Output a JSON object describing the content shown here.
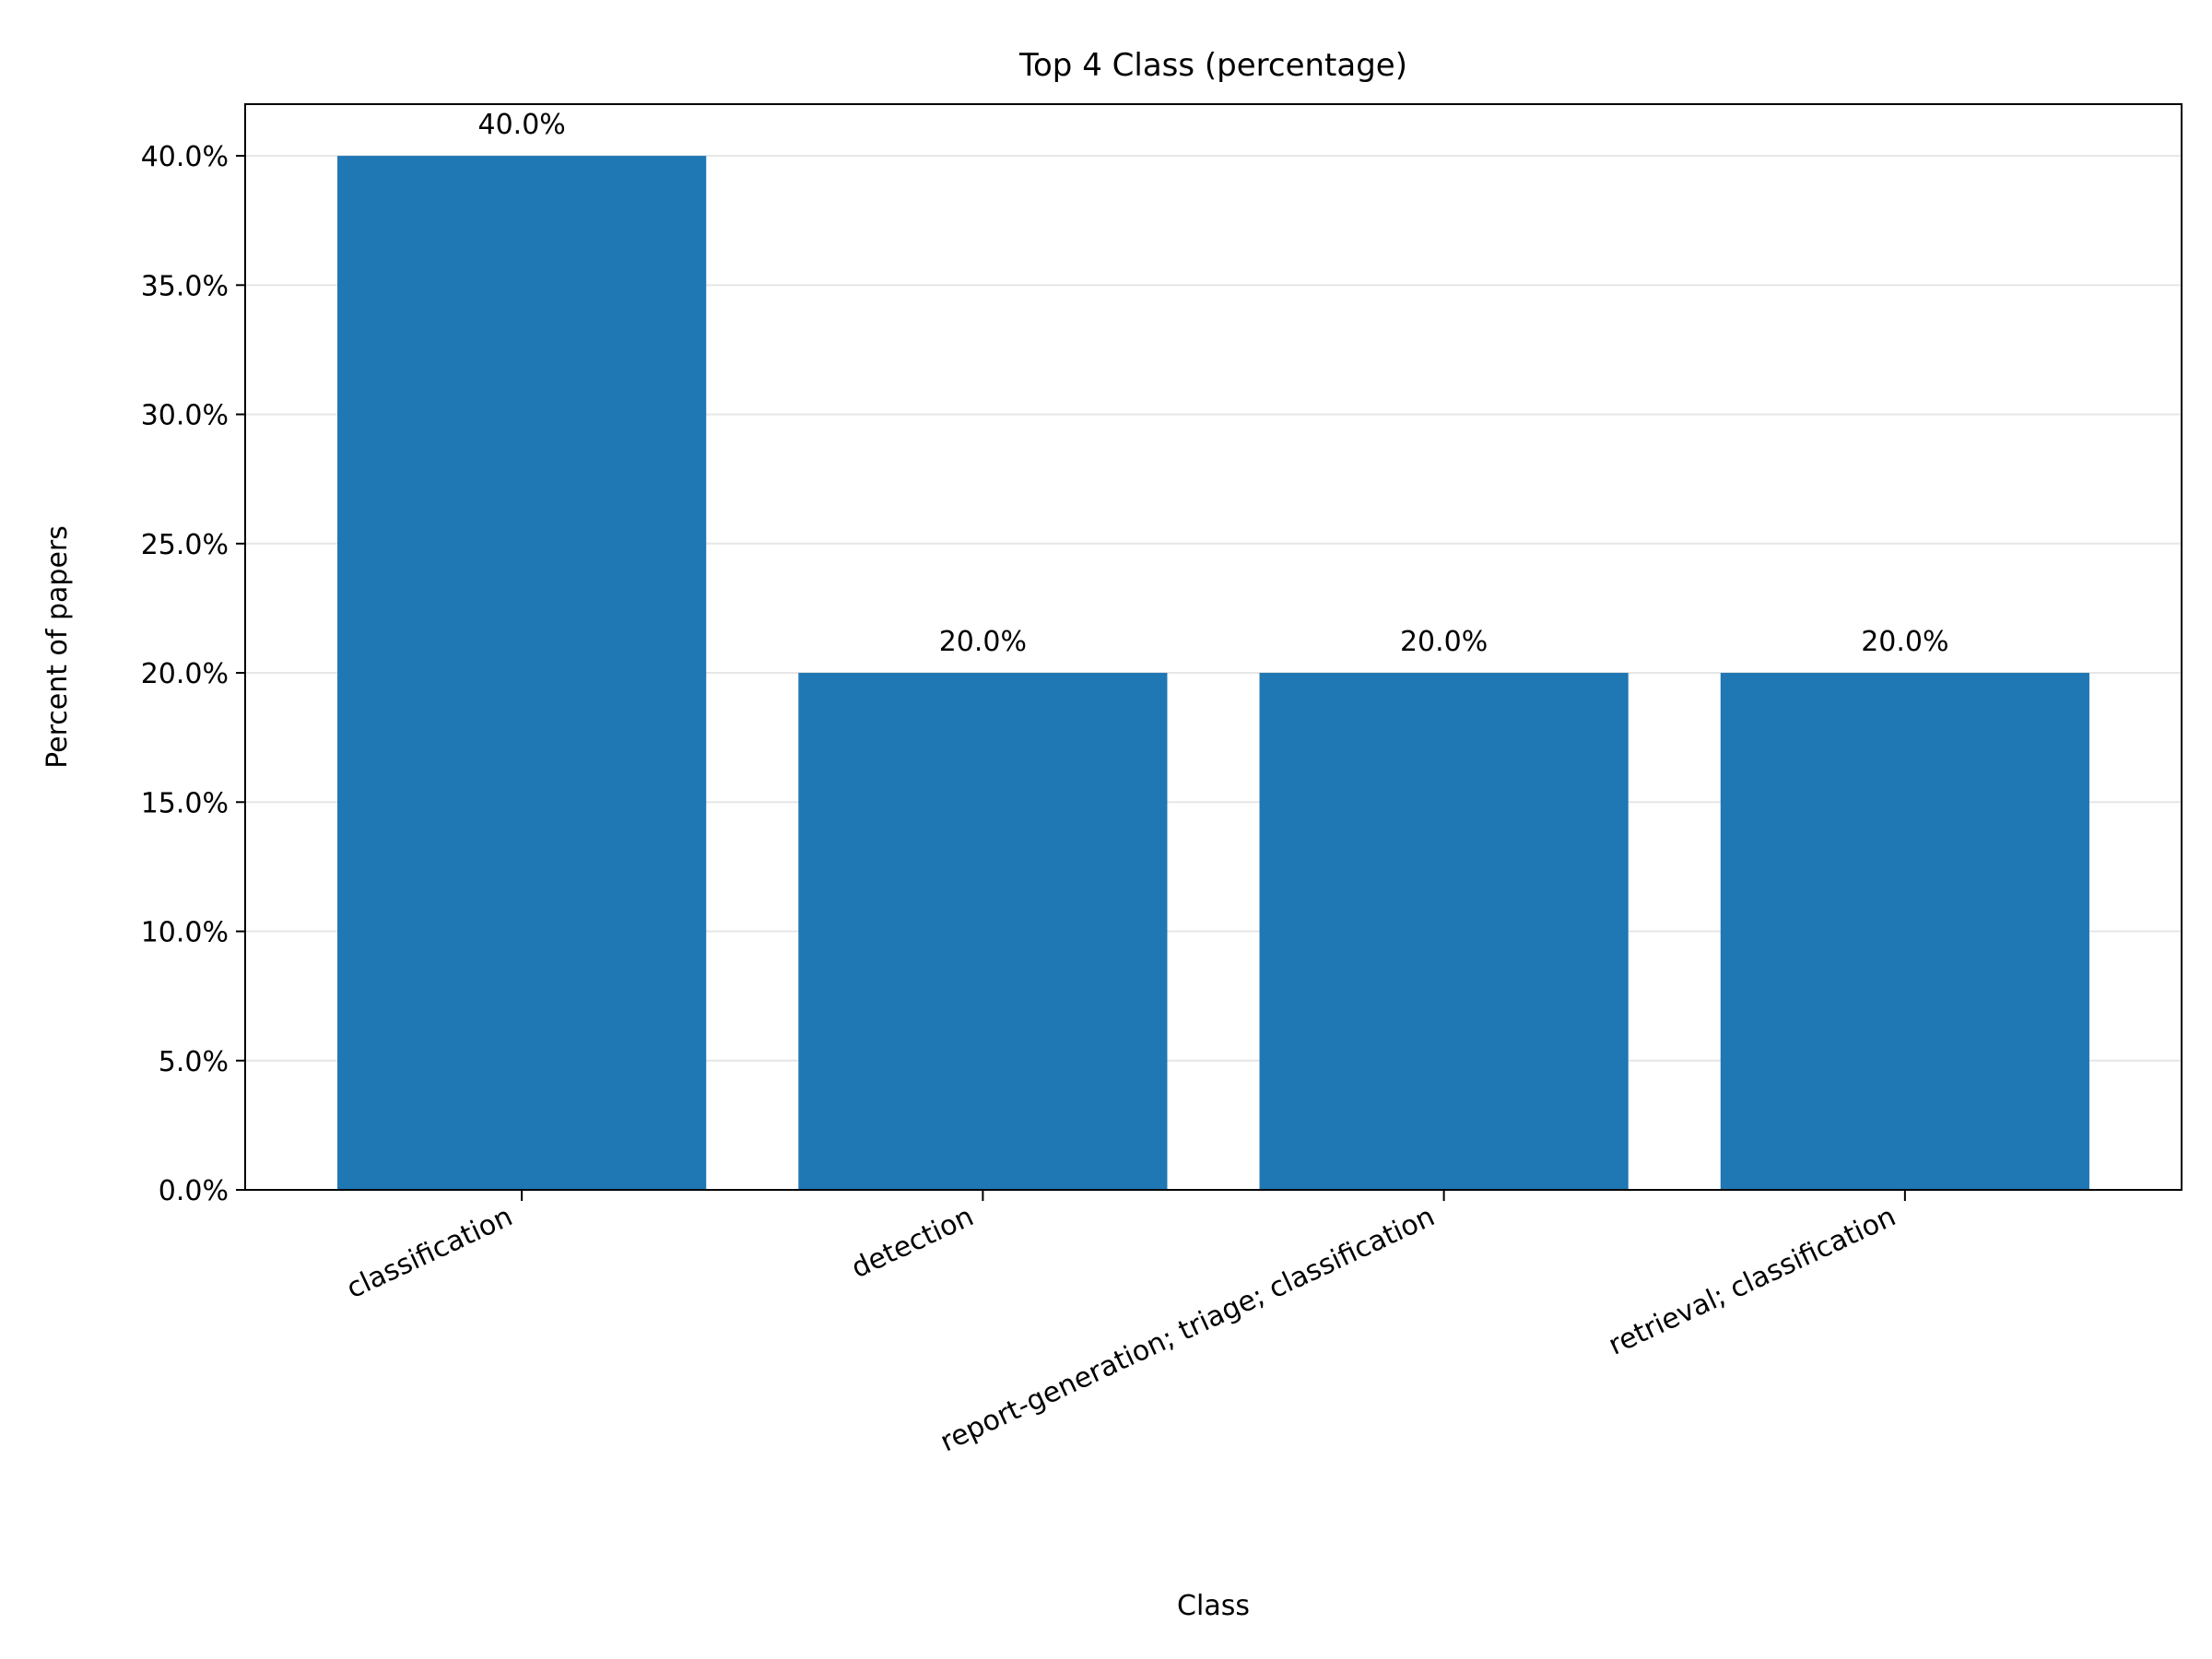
{
  "chart_data": {
    "type": "bar",
    "title": "Top 4 Class (percentage)",
    "xlabel": "Class",
    "ylabel": "Percent of papers",
    "categories": [
      "classification",
      "detection",
      "report-generation; triage; classification",
      "retrieval; classification"
    ],
    "values": [
      40.0,
      20.0,
      20.0,
      20.0
    ],
    "value_labels": [
      "40.0%",
      "20.0%",
      "20.0%",
      "20.0%"
    ],
    "ylim": [
      0,
      42
    ],
    "yticks": [
      0,
      5,
      10,
      15,
      20,
      25,
      30,
      35,
      40
    ],
    "ytick_labels": [
      "0.0%",
      "5.0%",
      "10.0%",
      "15.0%",
      "20.0%",
      "25.0%",
      "30.0%",
      "35.0%",
      "40.0%"
    ],
    "grid": "y",
    "bar_color": "#1f77b4",
    "grid_color": "#e6e6e6",
    "legend": "none"
  }
}
